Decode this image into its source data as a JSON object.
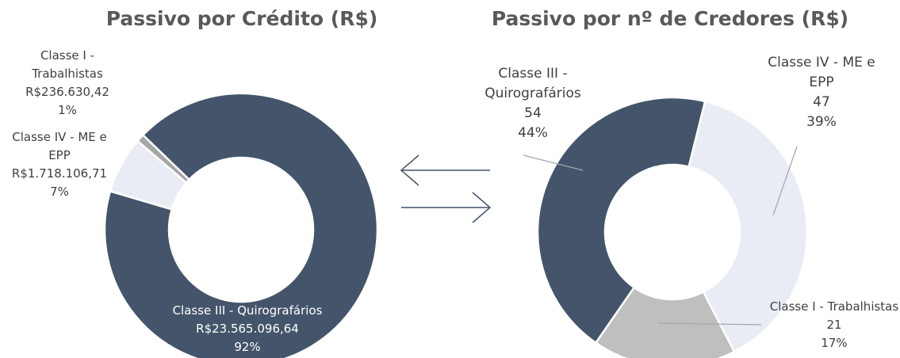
{
  "chart_data": [
    {
      "type": "pie",
      "title": "Passivo por Crédito (R$)",
      "categories": [
        "Classe III - Quirografários",
        "Classe IV - ME e EPP",
        "Classe I - Trabalhistas"
      ],
      "values": [
        23565096.64,
        1718106.71,
        236630.42
      ],
      "value_labels": [
        "R$23.565.096,64",
        "R$1.718.106,71",
        "R$236.630,42"
      ],
      "percent_labels": [
        "92%",
        "7%",
        "1%"
      ],
      "colors": [
        "#44546a",
        "#e9ebf5",
        "#a6a6a6"
      ]
    },
    {
      "type": "pie",
      "title": "Passivo por nº de Credores (R$)",
      "categories": [
        "Classe IV - ME e EPP",
        "Classe I - Trabalhistas",
        "Classe III - Quirografários"
      ],
      "values": [
        47,
        21,
        54
      ],
      "percent_labels": [
        "39%",
        "17%",
        "44%"
      ],
      "colors": [
        "#e9ebf5",
        "#bfbfbf",
        "#44546a"
      ]
    }
  ]
}
